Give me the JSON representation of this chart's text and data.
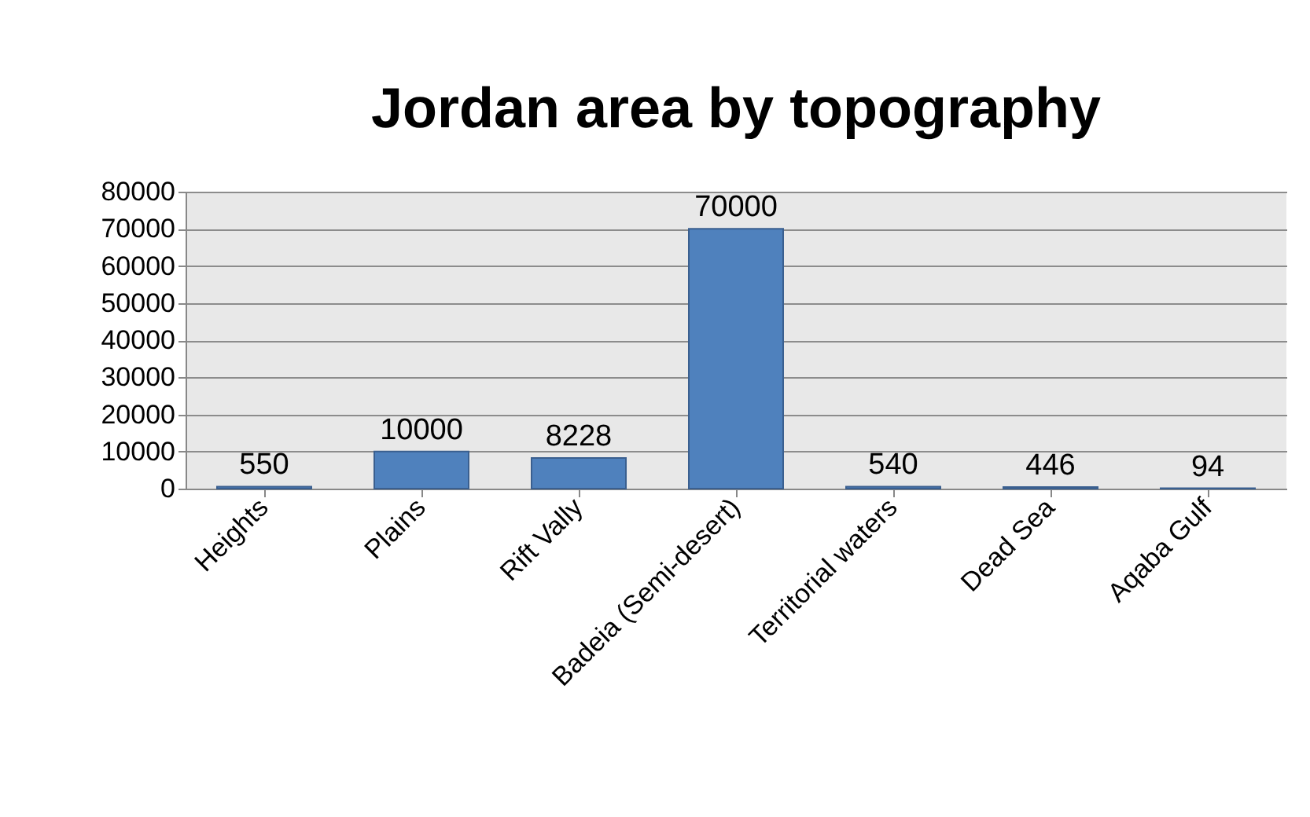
{
  "chart_data": {
    "type": "bar",
    "title": "Jordan area by topography",
    "categories": [
      "Heights",
      "Plains",
      "Rift Vally",
      "Badeia (Semi-desert)",
      "Territorial waters",
      "Dead Sea",
      "Aqaba Gulf"
    ],
    "values": [
      550,
      10000,
      8228,
      70000,
      540,
      446,
      94
    ],
    "color": "#4f81bd",
    "data_labels": true,
    "ylim": [
      0,
      80000
    ],
    "yticks": [
      0,
      10000,
      20000,
      30000,
      40000,
      50000,
      60000,
      70000,
      80000
    ],
    "grid": "y"
  }
}
